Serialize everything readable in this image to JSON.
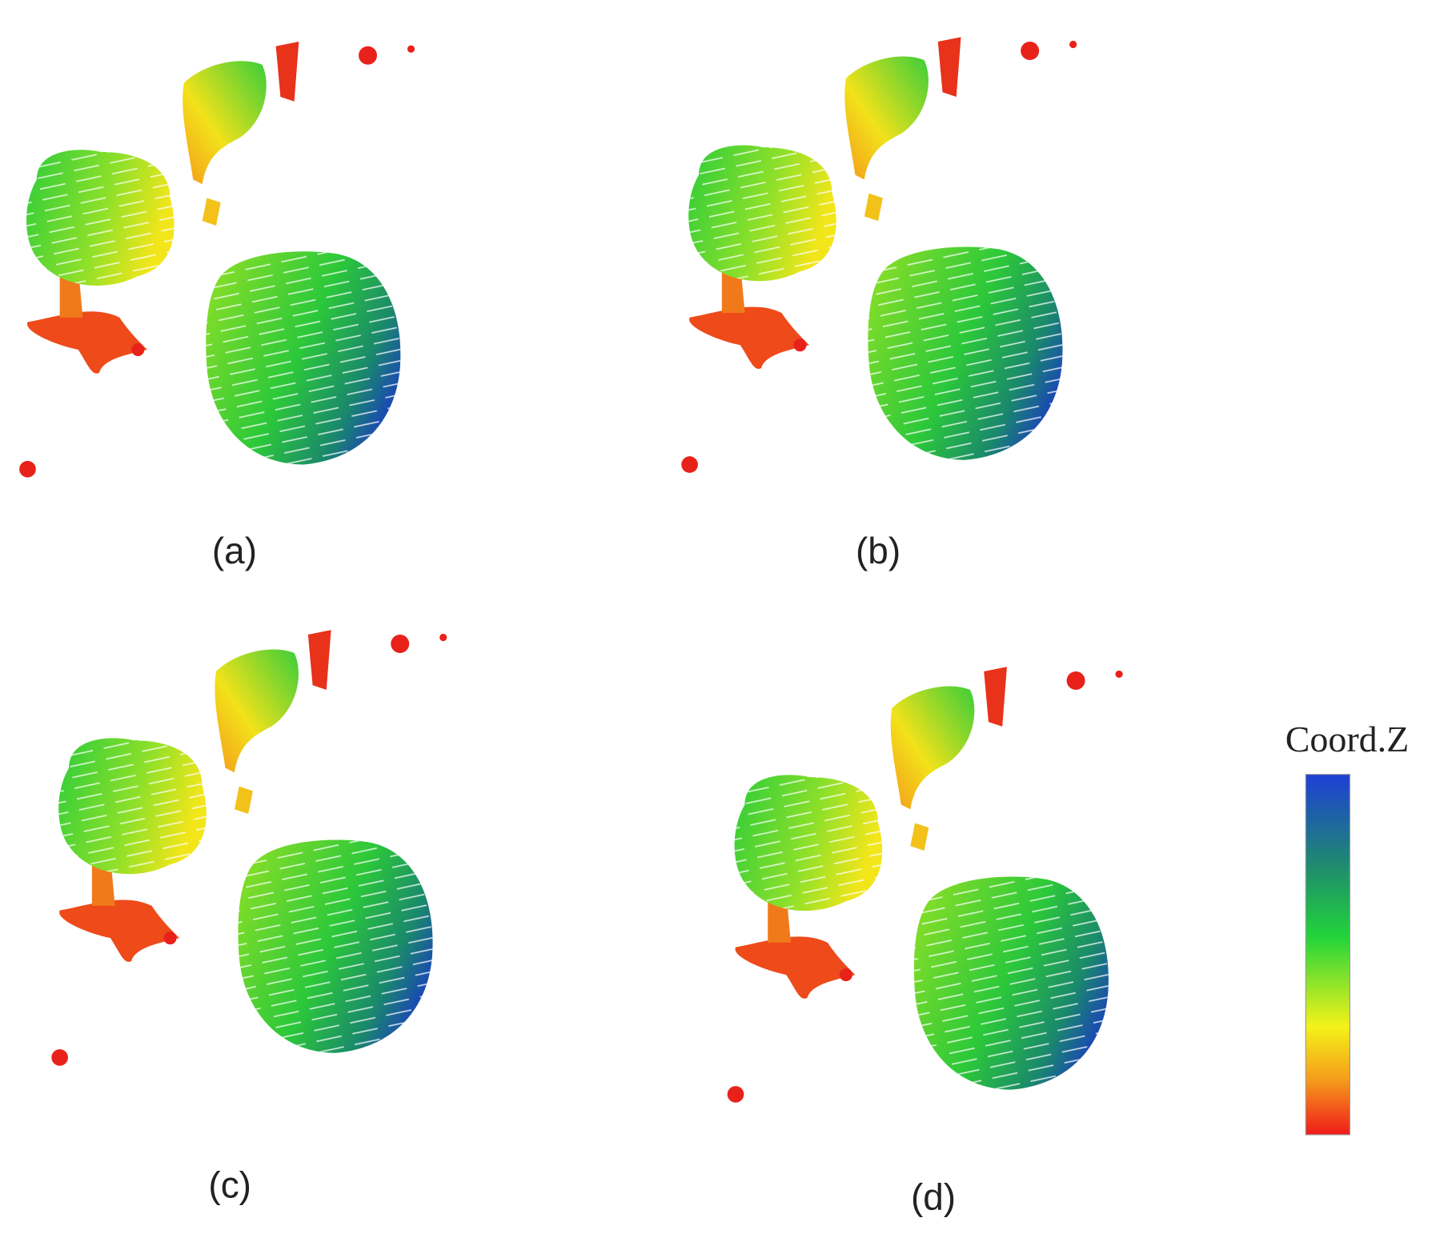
{
  "panels": [
    {
      "label": "(a)"
    },
    {
      "label": "(b)"
    },
    {
      "label": "(c)"
    },
    {
      "label": "(d)"
    }
  ],
  "colorbar": {
    "title": "Coord.Z"
  }
}
